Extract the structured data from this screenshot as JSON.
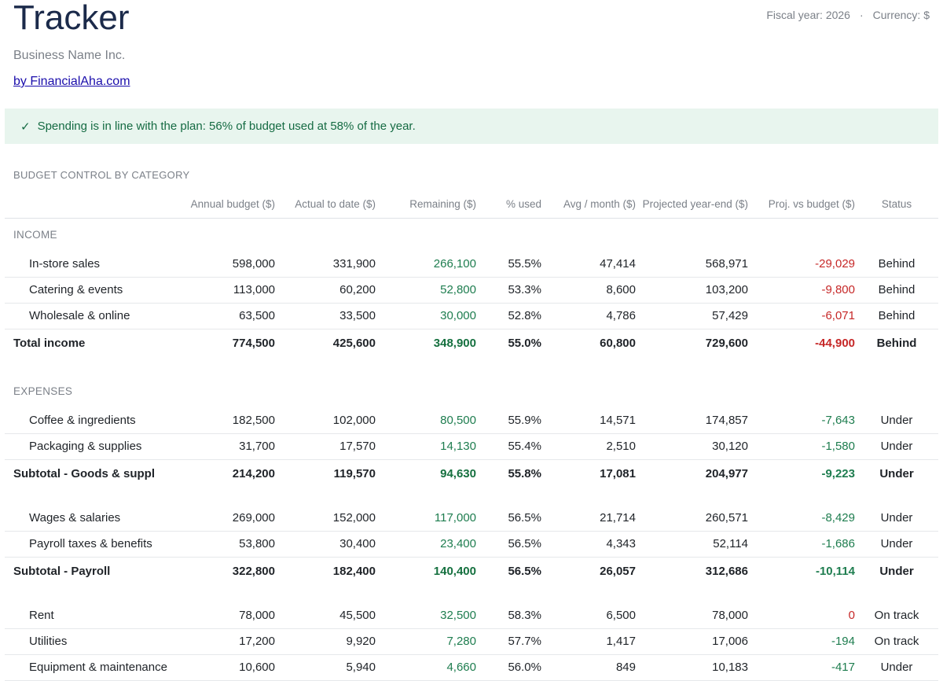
{
  "header": {
    "title": "Tracker",
    "fiscal_year": "Fiscal year: 2026",
    "separator": "·",
    "currency": "Currency: $",
    "company": "Business Name Inc.",
    "link_text": "by FinancialAha.com"
  },
  "banner": {
    "icon": "check-icon",
    "check_glyph": "✓",
    "message": "Spending is in line with the plan: 56% of budget used at 58% of the year.",
    "color": "#156b43",
    "background": "#e8f5ee"
  },
  "section_title": "BUDGET CONTROL BY CATEGORY",
  "columns": [
    "",
    "Annual budget ($)",
    "Actual to date ($)",
    "Remaining ($)",
    "% used",
    "Avg / month ($)",
    "Projected year-end ($)",
    "Proj. vs budget ($)",
    "Status"
  ],
  "colors": {
    "positive": "#1e7d4f",
    "negative": "#c62828"
  },
  "income": {
    "label": "INCOME",
    "rows": [
      {
        "name": "In-store sales",
        "budget": "598,000",
        "actual": "331,900",
        "remaining": "266,100",
        "used": "55.5%",
        "avg": "47,414",
        "projected": "568,971",
        "variance": "-29,029",
        "status": "Behind"
      },
      {
        "name": "Catering & events",
        "budget": "113,000",
        "actual": "60,200",
        "remaining": "52,800",
        "used": "53.3%",
        "avg": "8,600",
        "projected": "103,200",
        "variance": "-9,800",
        "status": "Behind"
      },
      {
        "name": "Wholesale & online",
        "budget": "63,500",
        "actual": "33,500",
        "remaining": "30,000",
        "used": "52.8%",
        "avg": "4,786",
        "projected": "57,429",
        "variance": "-6,071",
        "status": "Behind"
      }
    ],
    "total": {
      "name": "Total income",
      "budget": "774,500",
      "actual": "425,600",
      "remaining": "348,900",
      "used": "55.0%",
      "avg": "60,800",
      "projected": "729,600",
      "variance": "-44,900",
      "status": "Behind"
    }
  },
  "expenses": {
    "label": "EXPENSES",
    "goods": {
      "rows": [
        {
          "name": "Coffee & ingredients",
          "budget": "182,500",
          "actual": "102,000",
          "remaining": "80,500",
          "used": "55.9%",
          "avg": "14,571",
          "projected": "174,857",
          "variance": "-7,643",
          "status": "Under"
        },
        {
          "name": "Packaging & supplies",
          "budget": "31,700",
          "actual": "17,570",
          "remaining": "14,130",
          "used": "55.4%",
          "avg": "2,510",
          "projected": "30,120",
          "variance": "-1,580",
          "status": "Under"
        }
      ],
      "total": {
        "name": "Subtotal - Goods & suppl",
        "budget": "214,200",
        "actual": "119,570",
        "remaining": "94,630",
        "used": "55.8%",
        "avg": "17,081",
        "projected": "204,977",
        "variance": "-9,223",
        "status": "Under"
      }
    },
    "payroll": {
      "rows": [
        {
          "name": "Wages & salaries",
          "budget": "269,000",
          "actual": "152,000",
          "remaining": "117,000",
          "used": "56.5%",
          "avg": "21,714",
          "projected": "260,571",
          "variance": "-8,429",
          "status": "Under"
        },
        {
          "name": "Payroll taxes & benefits",
          "budget": "53,800",
          "actual": "30,400",
          "remaining": "23,400",
          "used": "56.5%",
          "avg": "4,343",
          "projected": "52,114",
          "variance": "-1,686",
          "status": "Under"
        }
      ],
      "total": {
        "name": "Subtotal - Payroll",
        "budget": "322,800",
        "actual": "182,400",
        "remaining": "140,400",
        "used": "56.5%",
        "avg": "26,057",
        "projected": "312,686",
        "variance": "-10,114",
        "status": "Under"
      }
    },
    "occupancy": {
      "rows": [
        {
          "name": "Rent",
          "budget": "78,000",
          "actual": "45,500",
          "remaining": "32,500",
          "used": "58.3%",
          "avg": "6,500",
          "projected": "78,000",
          "variance": "0",
          "status": "On track"
        },
        {
          "name": "Utilities",
          "budget": "17,200",
          "actual": "9,920",
          "remaining": "7,280",
          "used": "57.7%",
          "avg": "1,417",
          "projected": "17,006",
          "variance": "-194",
          "status": "On track"
        },
        {
          "name": "Equipment & maintenance",
          "budget": "10,600",
          "actual": "5,940",
          "remaining": "4,660",
          "used": "56.0%",
          "avg": "849",
          "projected": "10,183",
          "variance": "-417",
          "status": "Under"
        }
      ]
    }
  }
}
